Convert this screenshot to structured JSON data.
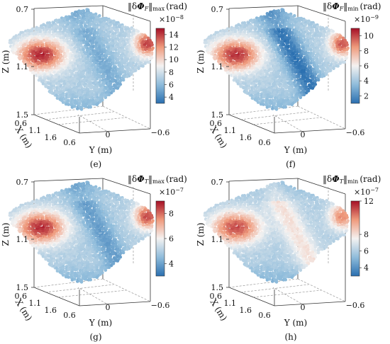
{
  "chart_data": [
    {
      "type": "3d-scatter-surface",
      "panel_label": "(e)",
      "title_left": "‖δ",
      "title_symbol": "Φ",
      "title_sub": "F",
      "title_right": "‖",
      "title_stat": "max",
      "title_unit": "(rad)",
      "colorbar": {
        "multiplier": "×10",
        "exponent": "−8",
        "ticks": [
          "14",
          "12",
          "10",
          "8",
          "6",
          "4"
        ],
        "min": 3,
        "max": 15
      },
      "xlabel": "X (m)",
      "ylabel": "Y (m)",
      "zlabel": "Z (m)",
      "x_ticks": [
        "0.6",
        "1.1",
        "1.6"
      ],
      "y_ticks": [
        "0.6",
        "0",
        "−0.6"
      ],
      "z_ticks": [
        "0.7",
        "1.1",
        "1.5"
      ],
      "hotspots": [
        {
          "name": "left",
          "value": 0.97
        },
        {
          "name": "right",
          "value": 0.92
        },
        {
          "name": "valley",
          "value": 0.2
        }
      ]
    },
    {
      "type": "3d-scatter-surface",
      "panel_label": "(f)",
      "title_left": "‖δ",
      "title_symbol": "Φ",
      "title_sub": "F",
      "title_right": "‖",
      "title_stat": "min",
      "title_unit": "(rad)",
      "colorbar": {
        "multiplier": "×10",
        "exponent": "−9",
        "ticks": [
          "10",
          "8",
          "6",
          "4",
          "2"
        ],
        "min": 1,
        "max": 11
      },
      "xlabel": "X (m)",
      "ylabel": "Y (m)",
      "zlabel": "Z (m)",
      "x_ticks": [
        "0.6",
        "1.1",
        "1.6"
      ],
      "y_ticks": [
        "0.6",
        "0",
        "−0.6"
      ],
      "z_ticks": [
        "0.7",
        "1.1",
        "1.5"
      ],
      "hotspots": [
        {
          "name": "left",
          "value": 0.95
        },
        {
          "name": "right",
          "value": 0.88
        },
        {
          "name": "valley",
          "value": 0.02
        }
      ]
    },
    {
      "type": "3d-scatter-surface",
      "panel_label": "(g)",
      "title_left": "‖δ",
      "title_symbol": "Φ",
      "title_sub": "T",
      "title_right": "‖",
      "title_stat": "max",
      "title_unit": "(rad)",
      "colorbar": {
        "multiplier": "×10",
        "exponent": "−7",
        "ticks": [
          "8",
          "6",
          "4"
        ],
        "min": 3,
        "max": 9
      },
      "xlabel": "X (m)",
      "ylabel": "Y (m)",
      "zlabel": "Z (m)",
      "x_ticks": [
        "0.6",
        "1.1",
        "1.6"
      ],
      "y_ticks": [
        "0.6",
        "0",
        "−0.6"
      ],
      "z_ticks": [
        "0.7",
        "1.1",
        "1.5"
      ],
      "hotspots": [
        {
          "name": "left",
          "value": 0.96
        },
        {
          "name": "right",
          "value": 0.9
        },
        {
          "name": "valley",
          "value": 0.15
        }
      ]
    },
    {
      "type": "3d-scatter-surface",
      "panel_label": "(h)",
      "title_left": "‖δ",
      "title_symbol": "Φ",
      "title_sub": "T",
      "title_right": "‖",
      "title_stat": "min",
      "title_unit": "(rad)",
      "colorbar": {
        "multiplier": "×10",
        "exponent": "−7",
        "ticks": [
          "12",
          "8",
          "6",
          "4"
        ],
        "min": 3,
        "max": 12
      },
      "xlabel": "X (m)",
      "ylabel": "Y (m)",
      "zlabel": "Z (m)",
      "x_ticks": [
        "0.6",
        "1.1",
        "1.6"
      ],
      "y_ticks": [
        "0.6",
        "0",
        "−0.6"
      ],
      "z_ticks": [
        "0.7",
        "1.1",
        "1.5"
      ],
      "hotspots": [
        {
          "name": "left",
          "value": 0.9
        },
        {
          "name": "right",
          "value": 0.78
        },
        {
          "name": "valley",
          "value": 0.55
        }
      ]
    }
  ]
}
